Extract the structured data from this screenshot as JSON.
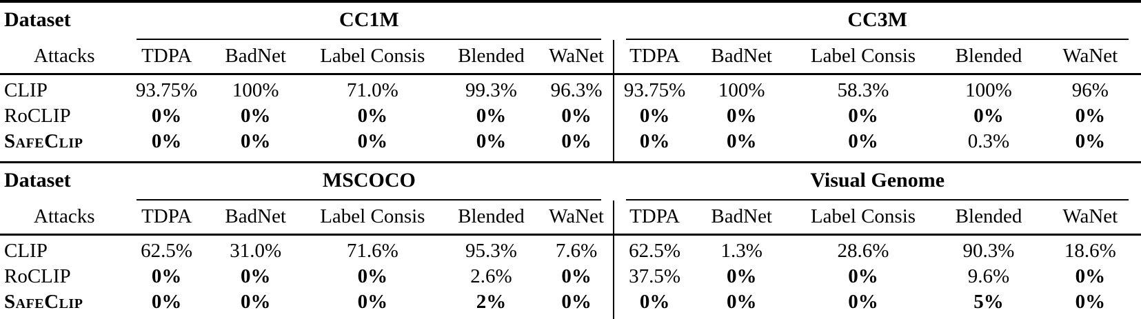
{
  "colors": {
    "text": "#000000",
    "background": "#ffffff",
    "rule": "#000000"
  },
  "t1": {
    "dataset_label": "Dataset",
    "attacks_label": "Attacks",
    "group1_name": "CC1M",
    "group2_name": "CC3M",
    "attack_columns": [
      "TDPA",
      "BadNet",
      "Label Consis",
      "Blended",
      "WaNet"
    ],
    "rows": [
      {
        "method": "CLIP",
        "v": [
          "93.75%",
          "100%",
          "71.0%",
          "99.3%",
          "96.3%",
          "93.75%",
          "100%",
          "58.3%",
          "100%",
          "96%"
        ]
      },
      {
        "method": "RoCLIP",
        "v": [
          "0%",
          "0%",
          "0%",
          "0%",
          "0%",
          "0%",
          "0%",
          "0%",
          "0%",
          "0%"
        ]
      },
      {
        "method": "SafeClip",
        "v": [
          "0%",
          "0%",
          "0%",
          "0%",
          "0%",
          "0%",
          "0%",
          "0%",
          "0.3%",
          "0%"
        ]
      }
    ]
  },
  "t2": {
    "dataset_label": "Dataset",
    "attacks_label": "Attacks",
    "group1_name": "MSCOCO",
    "group2_name": "Visual Genome",
    "attack_columns": [
      "TDPA",
      "BadNet",
      "Label Consis",
      "Blended",
      "WaNet"
    ],
    "rows": [
      {
        "method": "CLIP",
        "v": [
          "62.5%",
          "31.0%",
          "71.6%",
          "95.3%",
          "7.6%",
          "62.5%",
          "1.3%",
          "28.6%",
          "90.3%",
          "18.6%"
        ]
      },
      {
        "method": "RoCLIP",
        "v": [
          "0%",
          "0%",
          "0%",
          "2.6%",
          "0%",
          "37.5%",
          "0%",
          "0%",
          "9.6%",
          "0%"
        ]
      },
      {
        "method": "SafeClip",
        "v": [
          "0%",
          "0%",
          "0%",
          "2%",
          "0%",
          "0%",
          "0%",
          "0%",
          "5%",
          "0%"
        ]
      }
    ]
  }
}
